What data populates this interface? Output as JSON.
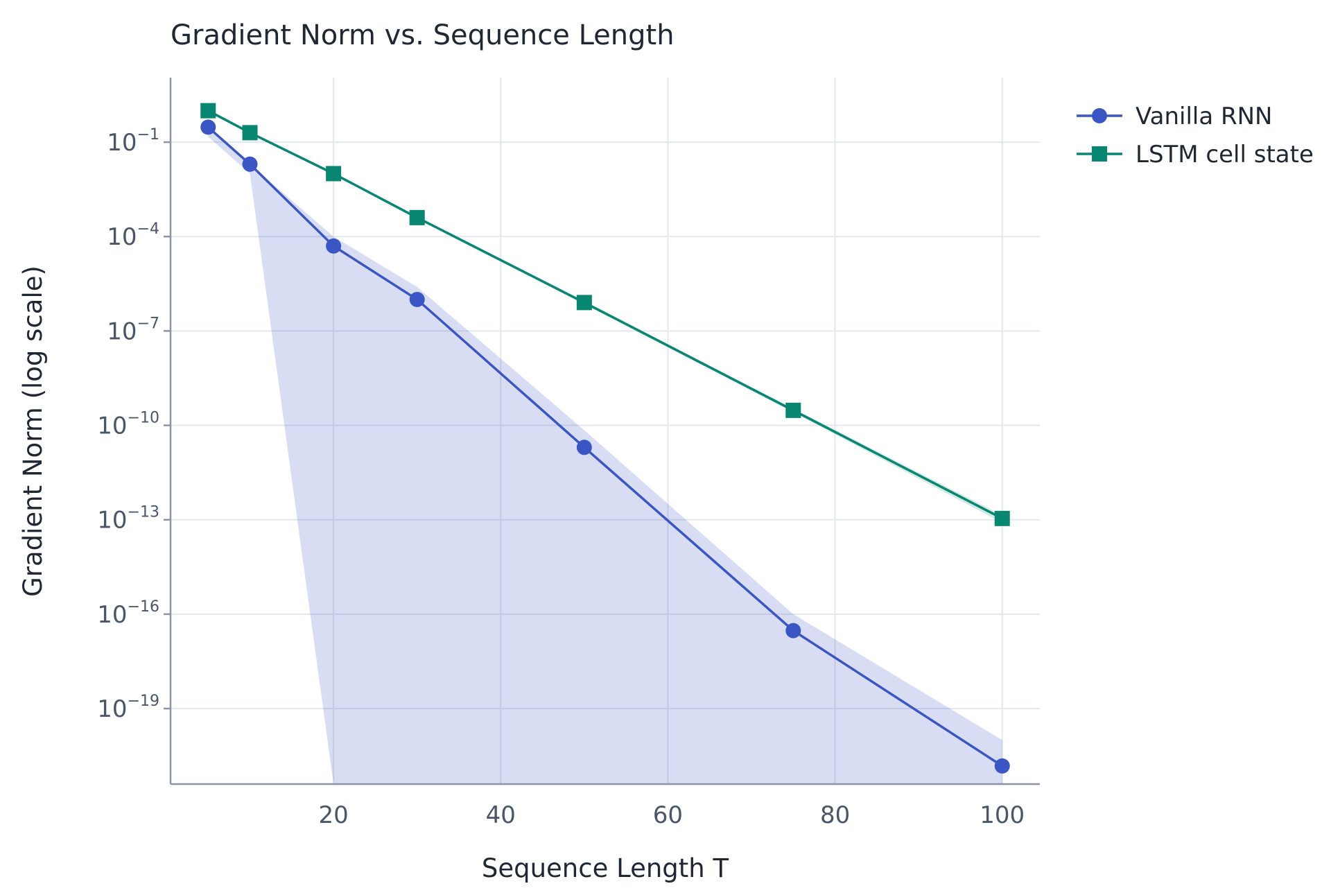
{
  "chart_data": {
    "type": "line",
    "title": "Gradient Norm vs. Sequence Length",
    "xlabel": "Sequence Length T",
    "ylabel": "Gradient Norm (log scale)",
    "x_scale": "linear",
    "y_scale": "log",
    "xlim": [
      0.5,
      104.5
    ],
    "ylim_exp": [
      -21.4,
      1.05
    ],
    "x_ticks": [
      20,
      40,
      60,
      80,
      100
    ],
    "y_ticks": [
      {
        "base": "10",
        "exp": "−1",
        "value": -1
      },
      {
        "base": "10",
        "exp": "−4",
        "value": -4
      },
      {
        "base": "10",
        "exp": "−7",
        "value": -7
      },
      {
        "base": "10",
        "exp": "−10",
        "value": -10
      },
      {
        "base": "10",
        "exp": "−13",
        "value": -13
      },
      {
        "base": "10",
        "exp": "−16",
        "value": -16
      },
      {
        "base": "10",
        "exp": "−19",
        "value": -19
      }
    ],
    "grid": true,
    "legend_position": "outside-top-right",
    "x": [
      5,
      10,
      20,
      30,
      50,
      75,
      100
    ],
    "series": [
      {
        "name": "Vanilla RNN",
        "color": "#3a56c5",
        "marker": "circle",
        "values": [
          0.3,
          0.02,
          5e-05,
          1e-06,
          2e-11,
          3e-17,
          1.5e-21
        ],
        "band_lower": [
          0.15,
          0.01,
          1e-30,
          1e-30,
          1e-30,
          1e-30,
          1e-30
        ],
        "band_upper": [
          0.35,
          0.02,
          0.0001,
          2.5e-06,
          7e-11,
          1e-16,
          1e-20
        ]
      },
      {
        "name": "LSTM cell state",
        "color": "#078671",
        "marker": "square",
        "values": [
          1.0,
          0.2,
          0.01,
          0.0004,
          8e-07,
          3e-10,
          1.1e-13
        ],
        "band_lower": [
          0.9,
          0.18,
          0.009,
          0.00036,
          7e-07,
          2.6e-10,
          8e-14
        ],
        "band_upper": [
          1.1,
          0.22,
          0.011,
          0.00044,
          9e-07,
          3.4e-10,
          1.4e-13
        ]
      }
    ]
  }
}
